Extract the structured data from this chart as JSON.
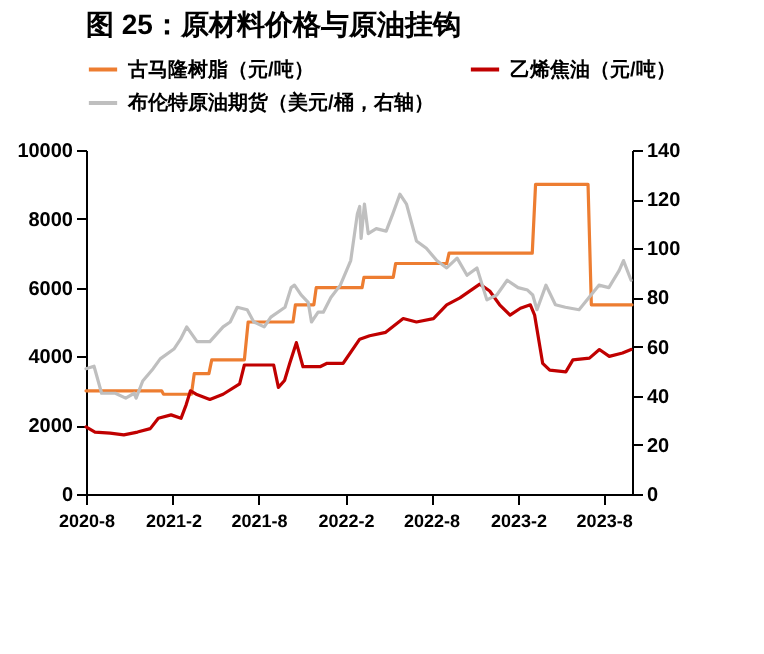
{
  "chart_data": {
    "type": "line",
    "title": "图 25：原材料价格与原油挂钩",
    "legend": "top",
    "grid": false,
    "xlim": [
      "2020-08-01",
      "2023-09-30"
    ],
    "xticks": [
      {
        "value": "2020-08",
        "label": "2020-8"
      },
      {
        "value": "2021-02",
        "label": "2021-2"
      },
      {
        "value": "2021-08",
        "label": "2021-8"
      },
      {
        "value": "2022-02",
        "label": "2022-2"
      },
      {
        "value": "2022-08",
        "label": "2022-8"
      },
      {
        "value": "2023-02",
        "label": "2023-2"
      },
      {
        "value": "2023-08",
        "label": "2023-8"
      }
    ],
    "ylim": [
      0,
      10000
    ],
    "yticks": [
      0,
      2000,
      4000,
      6000,
      8000,
      10000
    ],
    "y2lim": [
      0,
      140
    ],
    "y2ticks": [
      0,
      20,
      40,
      60,
      80,
      100,
      120,
      140
    ],
    "series": [
      {
        "name": "古马隆树脂（元/吨）",
        "color": "#ed7d31",
        "x": [
          "2020-08-01",
          "2021-01-08",
          "2021-01-12",
          "2021-03-12",
          "2021-03-18",
          "2021-04-18",
          "2021-04-24",
          "2021-07-02",
          "2021-07-10",
          "2021-10-13",
          "2021-10-18",
          "2021-11-26",
          "2021-12-01",
          "2022-03-08",
          "2022-03-12",
          "2022-05-13",
          "2022-05-18",
          "2022-09-03",
          "2022-09-08",
          "2023-03-03",
          "2023-03-10",
          "2023-06-29",
          "2023-07-06",
          "2023-09-30"
        ],
        "values": [
          3000,
          3000,
          2900,
          2900,
          3500,
          3500,
          3900,
          3900,
          5000,
          5000,
          5500,
          5500,
          6000,
          6000,
          6300,
          6300,
          6700,
          6700,
          7000,
          7000,
          9000,
          9000,
          5500,
          5500
        ]
      },
      {
        "name": "乙烯焦油（元/吨）",
        "color": "#c00000",
        "x": [
          "2020-08-01",
          "2020-08-20",
          "2020-09-21",
          "2020-10-20",
          "2020-11-18",
          "2020-12-15",
          "2021-01-01",
          "2021-01-28",
          "2021-02-18",
          "2021-03-01",
          "2021-03-10",
          "2021-03-22",
          "2021-04-20",
          "2021-05-18",
          "2021-06-22",
          "2021-07-02",
          "2021-09-02",
          "2021-09-12",
          "2021-09-25",
          "2021-10-06",
          "2021-10-20",
          "2021-11-03",
          "2021-12-09",
          "2021-12-24",
          "2022-01-27",
          "2022-03-03",
          "2022-03-24",
          "2022-04-27",
          "2022-06-03",
          "2022-07-01",
          "2022-08-06",
          "2022-09-03",
          "2022-10-01",
          "2022-11-12",
          "2022-12-03",
          "2022-12-24",
          "2023-01-15",
          "2023-02-06",
          "2023-02-27",
          "2023-03-08",
          "2023-03-25",
          "2023-04-09",
          "2023-05-13",
          "2023-05-28",
          "2023-07-02",
          "2023-07-23",
          "2023-08-13",
          "2023-09-10",
          "2023-09-28"
        ],
        "values": [
          1950,
          1800,
          1770,
          1720,
          1800,
          1900,
          2200,
          2300,
          2200,
          2600,
          3000,
          2900,
          2750,
          2900,
          3200,
          3750,
          3750,
          3100,
          3300,
          3800,
          4400,
          3700,
          3700,
          3800,
          3800,
          4500,
          4600,
          4700,
          5100,
          5000,
          5100,
          5500,
          5700,
          6100,
          5900,
          5500,
          5200,
          5400,
          5500,
          5200,
          3800,
          3600,
          3550,
          3900,
          3950,
          4200,
          4000,
          4100,
          4200
        ]
      },
      {
        "name": "布伦特原油期货（美元/桶，右轴）",
        "color": "#bfbfbf",
        "axis": "y2",
        "x": [
          "2020-08-01",
          "2020-08-18",
          "2020-09-03",
          "2020-10-02",
          "2020-10-24",
          "2020-11-11",
          "2020-11-15",
          "2020-11-29",
          "2020-12-21",
          "2021-01-05",
          "2021-02-03",
          "2021-02-17",
          "2021-03-02",
          "2021-03-24",
          "2021-04-20",
          "2021-05-18",
          "2021-06-02",
          "2021-06-17",
          "2021-07-08",
          "2021-07-22",
          "2021-08-13",
          "2021-08-27",
          "2021-09-26",
          "2021-10-09",
          "2021-10-16",
          "2021-10-30",
          "2021-11-14",
          "2021-11-21",
          "2021-12-05",
          "2021-12-16",
          "2022-01-01",
          "2022-01-21",
          "2022-02-12",
          "2022-02-26",
          "2022-03-03",
          "2022-03-06",
          "2022-03-13",
          "2022-03-21",
          "2022-04-07",
          "2022-04-28",
          "2022-05-12",
          "2022-05-27",
          "2022-06-10",
          "2022-07-01",
          "2022-07-22",
          "2022-08-13",
          "2022-09-03",
          "2022-09-25",
          "2022-10-16",
          "2022-11-06",
          "2022-11-27",
          "2022-12-18",
          "2023-01-09",
          "2023-02-01",
          "2023-02-21",
          "2023-03-04",
          "2023-03-13",
          "2023-04-01",
          "2023-04-21",
          "2023-05-12",
          "2023-06-10",
          "2023-07-01",
          "2023-07-22",
          "2023-08-12",
          "2023-09-03",
          "2023-09-12",
          "2023-09-28"
        ],
        "values": [
          51,
          52,
          41,
          41,
          39,
          41,
          39,
          46,
          51,
          55,
          59,
          63,
          68,
          62,
          62,
          68,
          70,
          76,
          75,
          70,
          68,
          72,
          76,
          84,
          85,
          81,
          78,
          70,
          74,
          74,
          80,
          85,
          95,
          114,
          117,
          104,
          118,
          106,
          108,
          107,
          114,
          122,
          118,
          103,
          100,
          95,
          92,
          96,
          89,
          92,
          79,
          81,
          87,
          84,
          83,
          81,
          75,
          85,
          77,
          76,
          75,
          80,
          85,
          84,
          91,
          95,
          87
        ]
      }
    ]
  }
}
